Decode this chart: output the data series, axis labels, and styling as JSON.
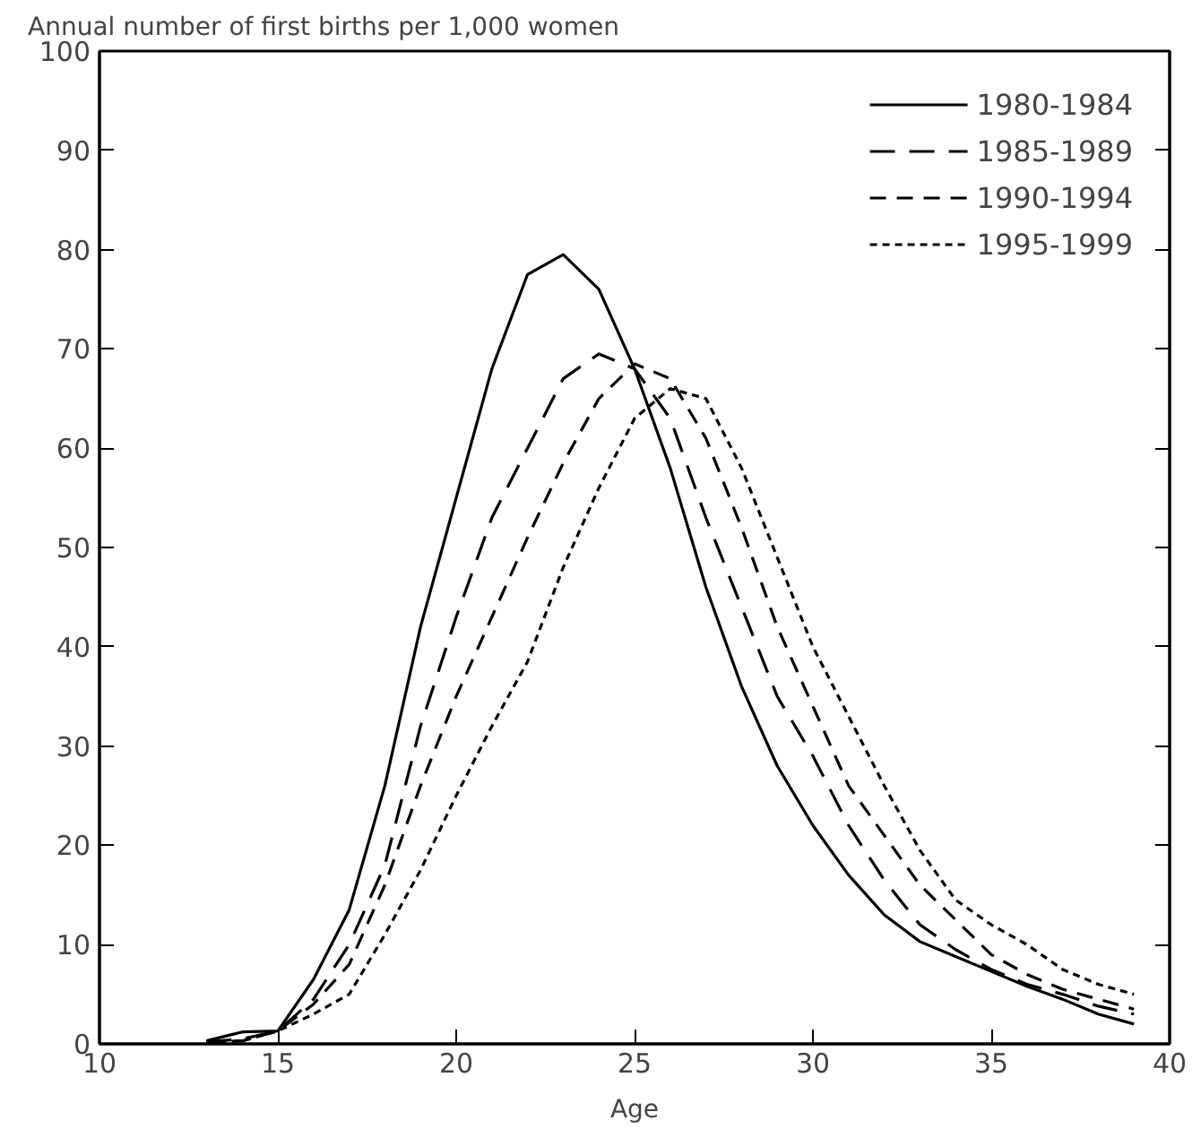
{
  "chart_data": {
    "type": "line",
    "ylabel": "Annual number of first births per 1,000 women",
    "xlabel": "Age",
    "x": [
      13,
      14,
      15,
      16,
      17,
      18,
      19,
      20,
      21,
      22,
      23,
      24,
      25,
      26,
      27,
      28,
      29,
      30,
      31,
      32,
      33,
      34,
      35,
      36,
      37,
      38,
      39
    ],
    "xlim": [
      10,
      40
    ],
    "xticks": [
      10,
      15,
      20,
      25,
      30,
      35,
      40
    ],
    "ylim": [
      0,
      100
    ],
    "yticks": [
      0,
      10,
      20,
      30,
      40,
      50,
      60,
      70,
      80,
      90,
      100
    ],
    "grid": false,
    "legend": "top right",
    "marker": "none",
    "series": [
      {
        "name": "1980-1984",
        "color": "#000000",
        "line_style": "solid",
        "values": [
          0.3,
          1.2,
          1.3,
          6.5,
          13.5,
          26,
          42,
          55,
          68,
          77.5,
          79.5,
          76,
          68,
          58,
          46,
          36,
          28,
          22,
          17,
          13,
          10.3,
          8.8,
          7.3,
          5.8,
          4.5,
          3,
          2
        ]
      },
      {
        "name": "1985-1989",
        "color": "#000000",
        "line_style": "dashed",
        "values": [
          0.2,
          0.5,
          1.3,
          4.5,
          10,
          18,
          32,
          43,
          53,
          60,
          67,
          69.5,
          68,
          63,
          53,
          44,
          35,
          29,
          22,
          16.5,
          12,
          9.5,
          7.5,
          6,
          5,
          3.8,
          3
        ]
      },
      {
        "name": "1990-1994",
        "color": "#000000",
        "line_style": "dashed",
        "values": [
          0.2,
          0.3,
          1.3,
          4,
          8,
          16,
          26,
          35,
          43,
          51,
          58.5,
          65,
          68.5,
          67,
          61,
          52,
          42,
          34,
          26,
          21,
          16,
          12.5,
          9,
          7,
          5.5,
          4.5,
          3.5
        ]
      },
      {
        "name": "1995-1999",
        "color": "#000000",
        "line_style": "dotted",
        "values": [
          0.2,
          0.3,
          1.3,
          3,
          5,
          11,
          17.5,
          25,
          32,
          38.5,
          48,
          56,
          63,
          66,
          65,
          58,
          49,
          40,
          33,
          26,
          19.5,
          14.5,
          12,
          10,
          7.5,
          6,
          5
        ]
      }
    ]
  }
}
